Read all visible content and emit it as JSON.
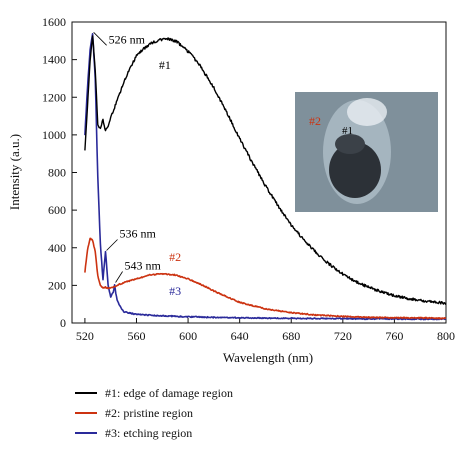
{
  "chart_data": {
    "type": "line",
    "xlabel": "Wavelength (nm)",
    "ylabel": "Intensity (a.u.)",
    "xlim": [
      510,
      800
    ],
    "ylim": [
      0,
      1600
    ],
    "xticks": [
      520,
      560,
      600,
      640,
      680,
      720,
      760,
      800
    ],
    "yticks": [
      0,
      200,
      400,
      600,
      800,
      1000,
      1200,
      1400,
      1600
    ],
    "series": [
      {
        "name": "#1",
        "legend": "#1: edge of damage region",
        "color": "#000000",
        "x": [
          520,
          522,
          524,
          526,
          528,
          530,
          532,
          534,
          536,
          538,
          542,
          546,
          550,
          556,
          560,
          566,
          572,
          578,
          584,
          590,
          596,
          602,
          610,
          620,
          630,
          640,
          650,
          660,
          670,
          680,
          690,
          700,
          710,
          720,
          730,
          740,
          750,
          760,
          770,
          780,
          790,
          800
        ],
        "y": [
          920,
          1150,
          1400,
          1520,
          1350,
          1060,
          1030,
          1080,
          1020,
          1050,
          1130,
          1200,
          1280,
          1370,
          1420,
          1460,
          1490,
          1505,
          1510,
          1500,
          1470,
          1430,
          1360,
          1250,
          1120,
          980,
          850,
          730,
          620,
          520,
          440,
          370,
          310,
          260,
          220,
          190,
          165,
          145,
          130,
          120,
          112,
          105
        ]
      },
      {
        "name": "#2",
        "legend": "#2: pristine region",
        "color": "#cc3311",
        "x": [
          520,
          522,
          524,
          526,
          528,
          530,
          532,
          534,
          536,
          538,
          540,
          545,
          550,
          560,
          570,
          580,
          590,
          600,
          610,
          620,
          630,
          640,
          660,
          680,
          700,
          720,
          740,
          760,
          780,
          800
        ],
        "y": [
          270,
          390,
          450,
          440,
          380,
          250,
          200,
          185,
          190,
          185,
          185,
          200,
          215,
          235,
          255,
          262,
          255,
          235,
          205,
          170,
          140,
          110,
          75,
          55,
          42,
          35,
          30,
          28,
          27,
          25
        ]
      },
      {
        "name": "#3",
        "legend": "#3: etching region",
        "color": "#2a2a9a",
        "x": [
          520,
          522,
          524,
          526,
          528,
          530,
          532,
          534,
          536,
          538,
          540,
          542,
          543,
          545,
          548,
          550,
          560,
          580,
          600,
          620,
          640,
          660,
          680,
          700,
          720,
          740,
          760,
          780,
          800
        ],
        "y": [
          1000,
          1250,
          1450,
          1540,
          1300,
          780,
          420,
          230,
          380,
          200,
          140,
          165,
          200,
          120,
          80,
          60,
          45,
          38,
          33,
          30,
          28,
          26,
          25,
          24,
          23,
          22,
          22,
          21,
          20
        ]
      }
    ],
    "annotations": [
      {
        "text": "526 nm",
        "x": 526,
        "y": 1540,
        "color": "#000000"
      },
      {
        "text": "536 nm",
        "x": 536,
        "y": 380,
        "color": "#000000"
      },
      {
        "text": "543 nm",
        "x": 543,
        "y": 210,
        "color": "#000000"
      }
    ],
    "series_labels": [
      {
        "text": "#1",
        "x": 582,
        "y": 1350,
        "color": "#000000"
      },
      {
        "text": "#2",
        "x": 590,
        "y": 330,
        "color": "#cc3311"
      },
      {
        "text": "#3",
        "x": 590,
        "y": 150,
        "color": "#2a2a9a"
      }
    ],
    "inset": {
      "labels": [
        "#2",
        "#1"
      ],
      "label_colors": [
        "#cc3311",
        "#000000"
      ]
    },
    "legend_position": "bottom"
  }
}
